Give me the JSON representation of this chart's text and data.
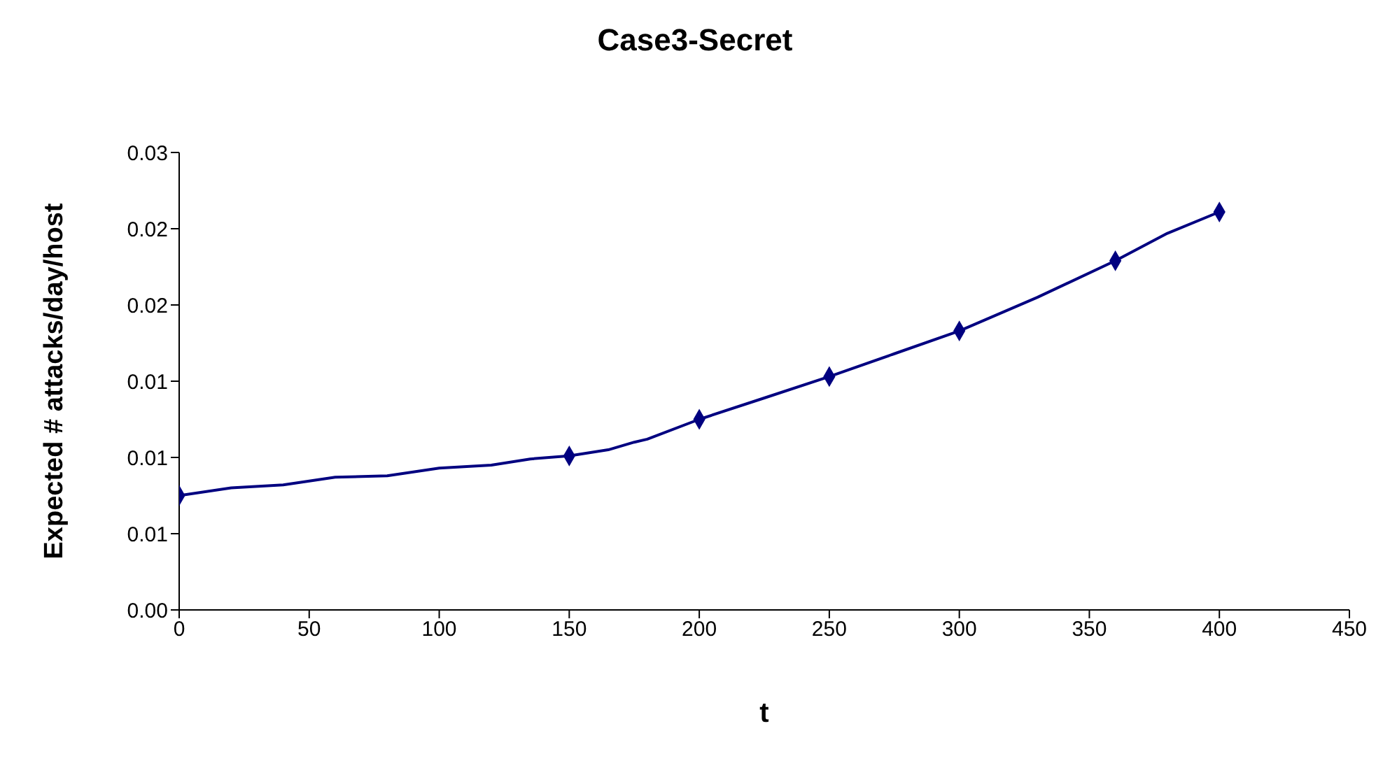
{
  "chart_data": {
    "type": "line",
    "title": "Case3-Secret",
    "xlabel": "t",
    "ylabel": "Expected # attacks/day/host",
    "series": [
      {
        "color": "#000080",
        "marker": "none",
        "x": [
          0,
          20,
          40,
          60,
          80,
          100,
          120,
          135,
          150,
          165,
          175,
          180,
          200,
          225,
          250,
          275,
          300,
          330,
          360,
          380,
          400
        ],
        "values": [
          0.0075,
          0.008,
          0.0082,
          0.0087,
          0.0088,
          0.0093,
          0.0095,
          0.0099,
          0.0101,
          0.0105,
          0.011,
          0.0112,
          0.0125,
          0.0139,
          0.0153,
          0.0168,
          0.0183,
          0.0205,
          0.0229,
          0.0247,
          0.0261
        ]
      },
      {
        "type": "scatter",
        "color": "#000080",
        "marker": "diamond",
        "x": [
          0,
          150,
          200,
          250,
          300,
          360,
          400
        ],
        "values": [
          0.0075,
          0.0101,
          0.0125,
          0.0153,
          0.0183,
          0.0229,
          0.0261
        ]
      }
    ],
    "xlim": [
      0,
      450
    ],
    "xticks": [
      0,
      50,
      100,
      150,
      200,
      250,
      300,
      350,
      400,
      450
    ],
    "ylim": [
      0,
      0.03
    ],
    "yticks": [
      {
        "value": 0,
        "label": "0.00"
      },
      {
        "value": 0.005,
        "label": "0.01"
      },
      {
        "value": 0.01,
        "label": "0.01"
      },
      {
        "value": 0.015,
        "label": "0.01"
      },
      {
        "value": 0.02,
        "label": "0.02"
      },
      {
        "value": 0.025,
        "label": "0.02"
      },
      {
        "value": 0.03,
        "label": "0.03"
      }
    ],
    "grid": false
  }
}
